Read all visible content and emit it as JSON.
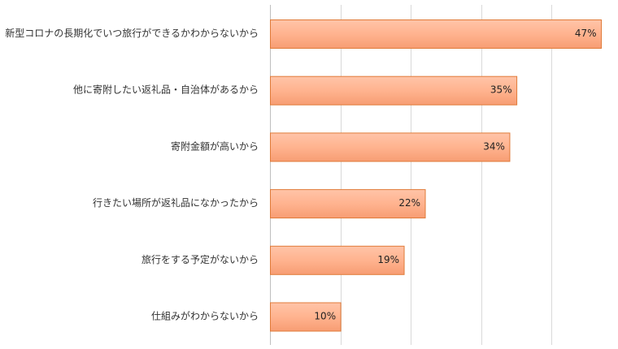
{
  "chart_data": {
    "type": "bar",
    "orientation": "horizontal",
    "categories": [
      "新型コロナの長期化でいつ旅行ができるかわからないから",
      "他に寄附したい返礼品・自治体があるから",
      "寄附金額が高いから",
      "行きたい場所が返礼品になかったから",
      "旅行をする予定がないから",
      "仕組みがわからないから"
    ],
    "values": [
      47,
      35,
      34,
      22,
      19,
      10
    ],
    "value_labels": [
      "47%",
      "35%",
      "34%",
      "22%",
      "19%",
      "10%"
    ],
    "unit": "%",
    "xlim": [
      0,
      50
    ],
    "grid": true,
    "legend": "none",
    "title": "",
    "xlabel": "",
    "ylabel": "",
    "colors": {
      "bar_fill_top": "#ffc4a8",
      "bar_fill_mid": "#ffb38f",
      "bar_fill_bottom": "#f79d73",
      "bar_border": "#e07b39",
      "grid": "#d9d9d9",
      "text": "#333333"
    }
  }
}
